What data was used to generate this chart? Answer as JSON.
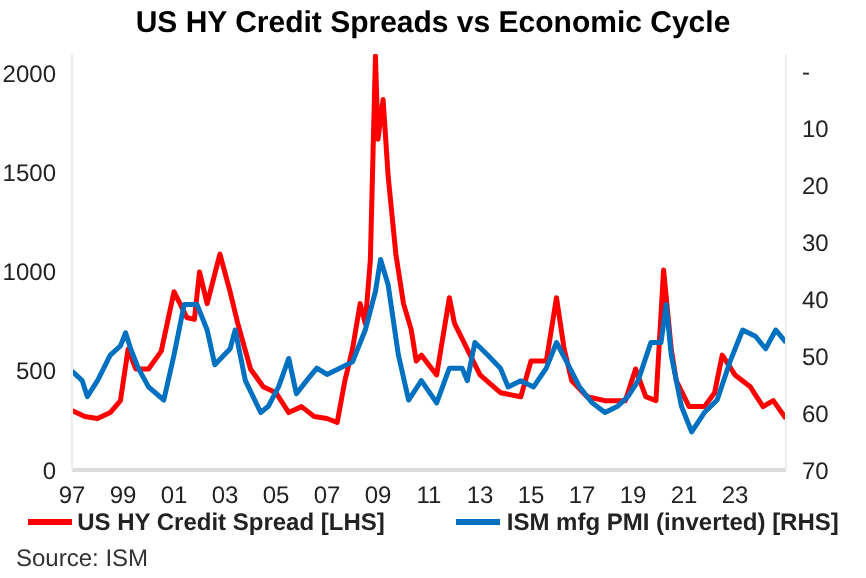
{
  "chart_data": {
    "type": "line",
    "title": "US HY Credit Spreads vs Economic Cycle",
    "annotations": [
      "Source: ISM"
    ],
    "xlim": [
      1997,
      2025
    ],
    "xticks": [
      {
        "value": 1997,
        "label": "97"
      },
      {
        "value": 1999,
        "label": "99"
      },
      {
        "value": 2001,
        "label": "01"
      },
      {
        "value": 2003,
        "label": "03"
      },
      {
        "value": 2005,
        "label": "05"
      },
      {
        "value": 2007,
        "label": "07"
      },
      {
        "value": 2009,
        "label": "09"
      },
      {
        "value": 2011,
        "label": "11"
      },
      {
        "value": 2013,
        "label": "13"
      },
      {
        "value": 2015,
        "label": "15"
      },
      {
        "value": 2017,
        "label": "17"
      },
      {
        "value": 2019,
        "label": "19"
      },
      {
        "value": 2021,
        "label": "21"
      },
      {
        "value": 2023,
        "label": "23"
      }
    ],
    "ylim": [
      0,
      2100
    ],
    "yticks": [
      0,
      500,
      1000,
      1500,
      2000
    ],
    "y2lim": [
      70,
      -3.1
    ],
    "y2ticks": [
      {
        "value": 0,
        "label": "-"
      },
      10,
      20,
      30,
      40,
      50,
      60,
      70
    ],
    "legend": "bottom",
    "marker": "none",
    "line_style": "solid",
    "series": [
      {
        "name": "US HY Credit Spread [LHS]",
        "color": "#ff0000",
        "x": [
          1997.0,
          1997.5,
          1998.0,
          1998.5,
          1998.9,
          1999.2,
          1999.5,
          2000.0,
          2000.5,
          2001.0,
          2001.5,
          2001.8,
          2002.0,
          2002.3,
          2002.8,
          2003.2,
          2003.5,
          2004.0,
          2004.5,
          2005.0,
          2005.5,
          2006.0,
          2006.5,
          2007.0,
          2007.4,
          2007.7,
          2008.0,
          2008.3,
          2008.5,
          2008.7,
          2008.9,
          2009.0,
          2009.2,
          2009.4,
          2009.7,
          2010.0,
          2010.3,
          2010.5,
          2010.7,
          2011.3,
          2011.8,
          2012.0,
          2012.5,
          2013.0,
          2013.8,
          2014.6,
          2015.0,
          2015.6,
          2016.0,
          2016.3,
          2016.6,
          2017.2,
          2017.9,
          2018.7,
          2019.1,
          2019.5,
          2019.9,
          2020.2,
          2020.5,
          2020.7,
          2021.2,
          2021.8,
          2022.2,
          2022.5,
          2023.0,
          2023.6,
          2024.1,
          2024.5,
          2025.0
        ],
        "values": [
          300,
          270,
          260,
          290,
          350,
          610,
          510,
          510,
          600,
          900,
          770,
          760,
          1000,
          840,
          1090,
          900,
          740,
          510,
          420,
          390,
          290,
          320,
          270,
          260,
          240,
          450,
          610,
          840,
          740,
          1060,
          2090,
          1670,
          1870,
          1480,
          1090,
          840,
          710,
          550,
          580,
          480,
          870,
          740,
          610,
          480,
          390,
          370,
          550,
          550,
          870,
          610,
          450,
          370,
          350,
          350,
          510,
          370,
          350,
          1010,
          610,
          450,
          320,
          320,
          390,
          580,
          480,
          420,
          320,
          350,
          260
        ]
      },
      {
        "name": "ISM mfg PMI (inverted) [RHS]",
        "color": "#0070c0",
        "axis": "y2",
        "x": [
          1997.0,
          1997.4,
          1997.6,
          1998.0,
          1998.5,
          1998.9,
          1999.1,
          1999.3,
          1999.6,
          2000.0,
          2000.6,
          2001.0,
          2001.4,
          2001.9,
          2002.3,
          2002.6,
          2003.2,
          2003.4,
          2003.8,
          2004.4,
          2004.7,
          2005.1,
          2005.5,
          2005.8,
          2006.2,
          2006.6,
          2007.0,
          2007.5,
          2008.0,
          2008.5,
          2008.9,
          2009.1,
          2009.4,
          2009.8,
          2010.2,
          2010.7,
          2011.3,
          2011.8,
          2012.3,
          2012.5,
          2012.8,
          2013.3,
          2013.8,
          2014.1,
          2014.6,
          2015.1,
          2015.6,
          2016.0,
          2016.4,
          2016.9,
          2017.4,
          2017.9,
          2018.4,
          2018.8,
          2019.2,
          2019.7,
          2020.1,
          2020.3,
          2020.5,
          2020.9,
          2021.3,
          2021.8,
          2022.3,
          2022.8,
          2023.3,
          2023.8,
          2024.2,
          2024.6,
          2025.0
        ],
        "values": [
          52.6,
          54.3,
          57.1,
          54.3,
          49.8,
          48.2,
          45.9,
          48.7,
          52.1,
          55.4,
          57.7,
          49.8,
          40.9,
          40.9,
          45.4,
          51.5,
          48.7,
          45.4,
          54.3,
          59.9,
          58.8,
          55.4,
          50.4,
          56.6,
          54.3,
          52.1,
          53.2,
          52.1,
          51.0,
          45.4,
          38.6,
          33.0,
          37.5,
          49.8,
          57.7,
          54.3,
          58.2,
          52.1,
          52.1,
          54.3,
          47.6,
          49.8,
          52.1,
          55.4,
          54.3,
          55.4,
          52.1,
          47.6,
          51.0,
          55.4,
          58.2,
          59.9,
          58.8,
          57.1,
          54.3,
          47.6,
          47.6,
          40.9,
          49.8,
          58.8,
          63.3,
          59.9,
          57.7,
          51.0,
          45.4,
          46.5,
          48.7,
          45.4,
          47.6
        ]
      }
    ]
  }
}
